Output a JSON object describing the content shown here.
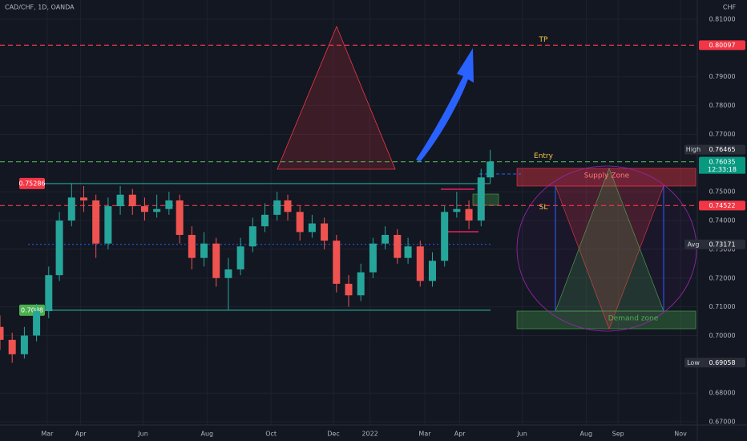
{
  "header": {
    "symbol": "CAD/CHF, 1D, OANDA",
    "currency": "CHF",
    "countdown": "12:33:18"
  },
  "chart_data": {
    "type": "candlestick",
    "x": [
      0,
      8,
      16,
      24,
      32,
      39,
      47,
      55,
      63,
      71,
      79,
      87,
      95,
      103,
      111,
      118,
      126,
      134,
      142,
      150,
      158,
      166,
      174,
      182,
      189,
      197,
      205,
      213,
      221,
      229,
      237,
      245,
      253,
      261,
      268,
      276,
      284,
      292,
      300,
      308,
      316,
      322
    ],
    "open": [
      0.703,
      0.6985,
      0.6935,
      0.7,
      0.7085,
      0.721,
      0.74,
      0.748,
      0.747,
      0.732,
      0.745,
      0.749,
      0.745,
      0.743,
      0.744,
      0.747,
      0.735,
      0.727,
      0.732,
      0.72,
      0.723,
      0.731,
      0.738,
      0.742,
      0.747,
      0.743,
      0.736,
      0.739,
      0.733,
      0.718,
      0.714,
      0.722,
      0.732,
      0.735,
      0.727,
      0.731,
      0.719,
      0.726,
      0.743,
      0.744,
      0.74,
      0.755
    ],
    "high": [
      0.707,
      0.701,
      0.703,
      0.711,
      0.724,
      0.743,
      0.753,
      0.752,
      0.749,
      0.748,
      0.752,
      0.751,
      0.748,
      0.749,
      0.75,
      0.749,
      0.738,
      0.736,
      0.734,
      0.727,
      0.734,
      0.741,
      0.746,
      0.75,
      0.749,
      0.745,
      0.742,
      0.741,
      0.735,
      0.721,
      0.725,
      0.734,
      0.738,
      0.737,
      0.734,
      0.733,
      0.729,
      0.745,
      0.75,
      0.747,
      0.758,
      0.7646
    ],
    "low": [
      0.695,
      0.6905,
      0.692,
      0.698,
      0.706,
      0.719,
      0.738,
      0.743,
      0.727,
      0.73,
      0.742,
      0.742,
      0.74,
      0.741,
      0.742,
      0.732,
      0.723,
      0.724,
      0.717,
      0.709,
      0.721,
      0.729,
      0.736,
      0.74,
      0.74,
      0.733,
      0.734,
      0.73,
      0.715,
      0.71,
      0.712,
      0.72,
      0.73,
      0.725,
      0.725,
      0.717,
      0.717,
      0.724,
      0.741,
      0.737,
      0.738,
      0.753
    ],
    "close": [
      0.6985,
      0.6935,
      0.7,
      0.7085,
      0.721,
      0.74,
      0.748,
      0.747,
      0.732,
      0.745,
      0.749,
      0.745,
      0.743,
      0.744,
      0.747,
      0.735,
      0.727,
      0.732,
      0.72,
      0.723,
      0.731,
      0.738,
      0.742,
      0.747,
      0.743,
      0.736,
      0.739,
      0.733,
      0.718,
      0.714,
      0.722,
      0.732,
      0.735,
      0.727,
      0.731,
      0.719,
      0.726,
      0.743,
      0.744,
      0.74,
      0.755,
      0.7605
    ],
    "up_color": "#26a69a",
    "down_color": "#ef5350",
    "xlim": [
      0,
      458
    ],
    "ylim": [
      0.6689,
      0.8167
    ],
    "xticks": [
      {
        "value": 31,
        "label": "Mar"
      },
      {
        "value": 53,
        "label": "Apr"
      },
      {
        "value": 94,
        "label": "Jun"
      },
      {
        "value": 136,
        "label": "Aug"
      },
      {
        "value": 178,
        "label": "Oct"
      },
      {
        "value": 219,
        "label": "Dec"
      },
      {
        "value": 243,
        "label": "2022"
      },
      {
        "value": 279,
        "label": "Mar"
      },
      {
        "value": 302,
        "label": "Apr"
      },
      {
        "value": 343,
        "label": "Jun"
      },
      {
        "value": 385,
        "label": "Aug"
      },
      {
        "value": 406,
        "label": "Sep"
      },
      {
        "value": 447,
        "label": "Nov"
      }
    ],
    "yticks": [
      {
        "value": 0.81,
        "label": "0.81000"
      },
      {
        "value": 0.79,
        "label": "0.79000"
      },
      {
        "value": 0.78,
        "label": "0.78000"
      },
      {
        "value": 0.77,
        "label": "0.77000"
      },
      {
        "value": 0.75,
        "label": "0.75000"
      },
      {
        "value": 0.74,
        "label": "0.74000"
      },
      {
        "value": 0.73,
        "label": "0.73000"
      },
      {
        "value": 0.72,
        "label": "0.72000"
      },
      {
        "value": 0.71,
        "label": "0.71000"
      },
      {
        "value": 0.7,
        "label": "0.70000"
      },
      {
        "value": 0.68,
        "label": "0.68000"
      },
      {
        "value": 0.67,
        "label": "0.67000"
      }
    ],
    "grid": true,
    "levels": [
      {
        "value": 0.80097,
        "label": "0.80097",
        "tag": "TP",
        "line": "dashed",
        "line_color": "#f23645",
        "label_color": "#f23645",
        "tag_color": "#f5c542"
      },
      {
        "value": 0.76465,
        "label": "0.76465",
        "tag": "High",
        "line": "none",
        "line_color": "#2a2e39",
        "label_color": "#2a2e39",
        "tag_color": "#d1d4dc"
      },
      {
        "value": 0.76046,
        "label": "0.76046",
        "tag": "Entry",
        "line": "dashed",
        "line_color": "#4caf50",
        "label_color": "#089981",
        "tag_color": "#f5c542"
      },
      {
        "value": 0.76035,
        "label": "0.76035",
        "line": "none",
        "line_color": "#089981",
        "label_color": "#089981"
      },
      {
        "value": 0.74522,
        "label": "0.74522",
        "tag": "SL",
        "line": "dashed",
        "line_color": "#f23645",
        "label_color": "#f23645",
        "tag_color": "#f5c542"
      },
      {
        "value": 0.73171,
        "label": "0.73171",
        "tag": "Avg",
        "line": "dotted",
        "line_color": "#2962ff",
        "label_color": "#2a2e39",
        "tag_color": "#d1d4dc"
      },
      {
        "value": 0.69058,
        "label": "0.69058",
        "tag": "Low",
        "line": "none",
        "line_color": "#2a2e39",
        "label_color": "#2a2e39",
        "tag_color": "#d1d4dc"
      },
      {
        "value": 0.75286,
        "label": "0.75286",
        "line": "solid-left",
        "line_color": "#26a69a",
        "label_color": "#f23645"
      },
      {
        "value": 0.70881,
        "label": "0.7088",
        "line": "solid-left",
        "line_color": "#2a9d8f",
        "label_color": "#4caf50"
      }
    ],
    "annotations": {
      "supply": "Supply Zone",
      "demand": "Demand zone"
    }
  }
}
